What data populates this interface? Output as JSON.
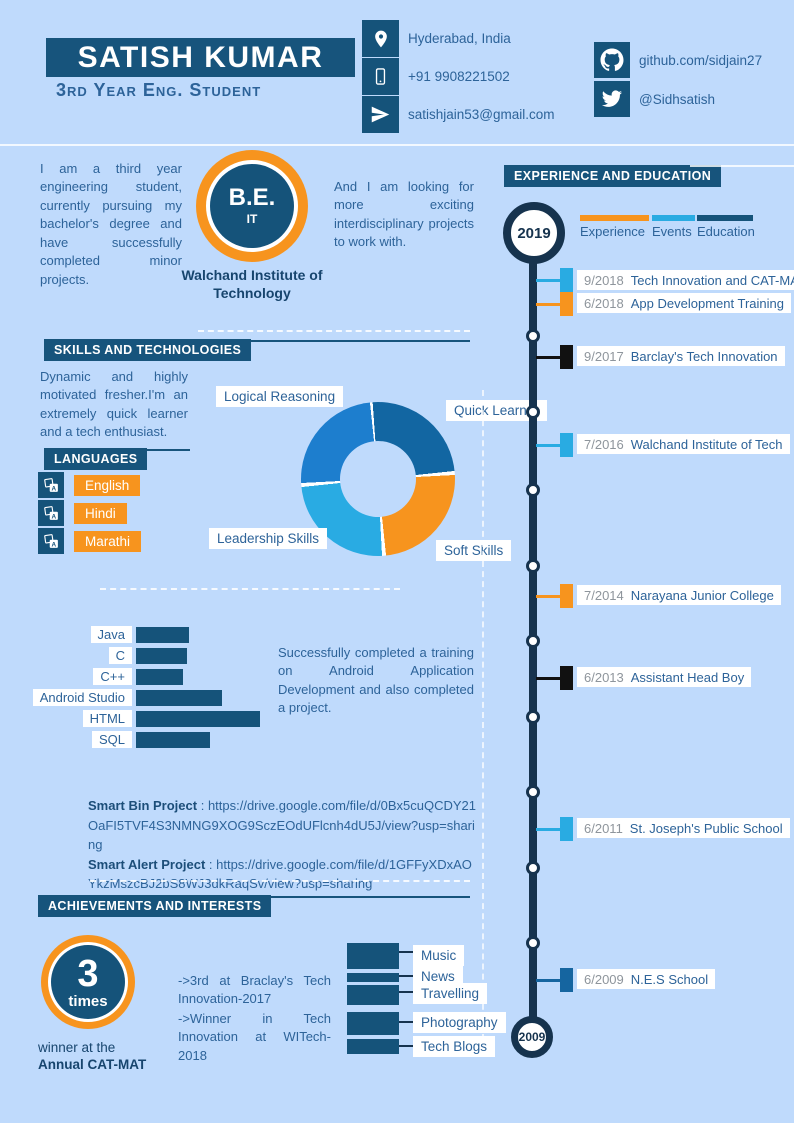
{
  "theme": {
    "bg": "#bfdafc",
    "navy": "#15537a",
    "dark_navy": "#16334e",
    "banner": "#17547c",
    "orange": "#f7941e",
    "cyan": "#29abe2",
    "blue": "#1d7ece",
    "deep_blue": "#1266a2",
    "text": "#2d6399",
    "date_gray": "#8e959c"
  },
  "header": {
    "name": "SATISH KUMAR",
    "subtitle": "3rd Year Eng. Student",
    "contacts": [
      {
        "icon": "location-pin",
        "text": "Hyderabad, India"
      },
      {
        "icon": "mobile-phone",
        "text": "+91 9908221502"
      },
      {
        "icon": "paper-plane",
        "text": "satishjain53@gmail.com"
      }
    ],
    "socials": [
      {
        "icon": "github",
        "text": "github.com/sidjain27"
      },
      {
        "icon": "twitter",
        "text": "@Sidhsatish"
      }
    ]
  },
  "about": {
    "left": "I am a third year engineering student, currently pursuing my bachelor's degree and have successfully completed minor projects.",
    "degree": "B.E.",
    "degree_branch": "IT",
    "institute": "Walchand Institute of Technology",
    "right": "And I am looking for more exciting interdisciplinary projects to work with."
  },
  "skills": {
    "title": "SKILLS AND TECHNOLOGIES",
    "intro": "Dynamic and highly motivated fresher.I'm an extremely quick learner and a tech enthusiast.",
    "languages_title": "LANGUAGES",
    "languages": [
      "English",
      "Hindi",
      "Marathi"
    ]
  },
  "donut": {
    "type": "pie",
    "segments": [
      {
        "label": "Quick Learner",
        "color": "#1266a2",
        "value": 25
      },
      {
        "label": "Soft Skills",
        "color": "#f7941e",
        "value": 25
      },
      {
        "label": "Leadership Skills",
        "color": "#29abe3",
        "value": 25
      },
      {
        "label": "Logical Reasoning",
        "color": "#1d7ece",
        "value": 25
      }
    ]
  },
  "tech_bars": {
    "type": "bar",
    "items": [
      {
        "label": "Java",
        "value": 43
      },
      {
        "label": "C",
        "value": 41
      },
      {
        "label": "C++",
        "value": 38
      },
      {
        "label": "Android Studio",
        "value": 69
      },
      {
        "label": "HTML",
        "value": 100
      },
      {
        "label": "SQL",
        "value": 60
      }
    ]
  },
  "android_note": "Successfully completed a training on Android Application Development and also completed a project.",
  "projects": {
    "separator": " : ",
    "items": [
      {
        "name": "Smart Bin Project",
        "url": "https://drive.google.com/file/d/0Bx5cuQCDY21OaFI5TVF4S3NMNG9XOG9SczEOdUFlcnh4dU5J/view?usp=sharing"
      },
      {
        "name": "Smart Alert Project",
        "url": "https://drive.google.com/file/d/1GFFyXDxAOYkzMszcBJ2bS8WJ3dkRaqSv/view?usp=sharing"
      }
    ]
  },
  "achievements": {
    "title": "ACHIEVEMENTS AND INTERESTS",
    "badge_number": "3",
    "badge_word": "times",
    "caption_line1": "winner at the",
    "caption_line2": "Annual CAT-MAT",
    "notes": [
      "->3rd at Braclay's Tech Innovation-2017",
      "->Winner in Tech Innovation at WITech-2018"
    ],
    "interests": [
      "Music",
      "News",
      "Travelling",
      "Photography",
      "Tech Blogs"
    ]
  },
  "timeline": {
    "title": "EXPERIENCE AND EDUCATION",
    "start_year": "2019",
    "end_year": "2009",
    "legend": [
      {
        "label": "Experience",
        "color": "#f7941e"
      },
      {
        "label": "Events",
        "color": "#29abe2"
      },
      {
        "label": "Education",
        "color": "#15537a"
      }
    ],
    "items": [
      {
        "date": "9/2018",
        "title": "Tech Innovation and CAT-MAT",
        "color": "#29abe2"
      },
      {
        "date": "6/2018",
        "title": "App Development Training",
        "color": "#f7941e"
      },
      {
        "date": "9/2017",
        "title": "Barclay's Tech Innovation",
        "color": "#111111"
      },
      {
        "date": "7/2016",
        "title": "Walchand Institute of Tech",
        "color": "#29abe2"
      },
      {
        "date": "7/2014",
        "title": "Narayana Junior College",
        "color": "#f7941e"
      },
      {
        "date": "6/2013",
        "title": "Assistant Head Boy",
        "color": "#111111"
      },
      {
        "date": "6/2011",
        "title": "St. Joseph's Public School",
        "color": "#29abe2"
      },
      {
        "date": "6/2009",
        "title": "N.E.S School",
        "color": "#1565a0"
      }
    ]
  }
}
